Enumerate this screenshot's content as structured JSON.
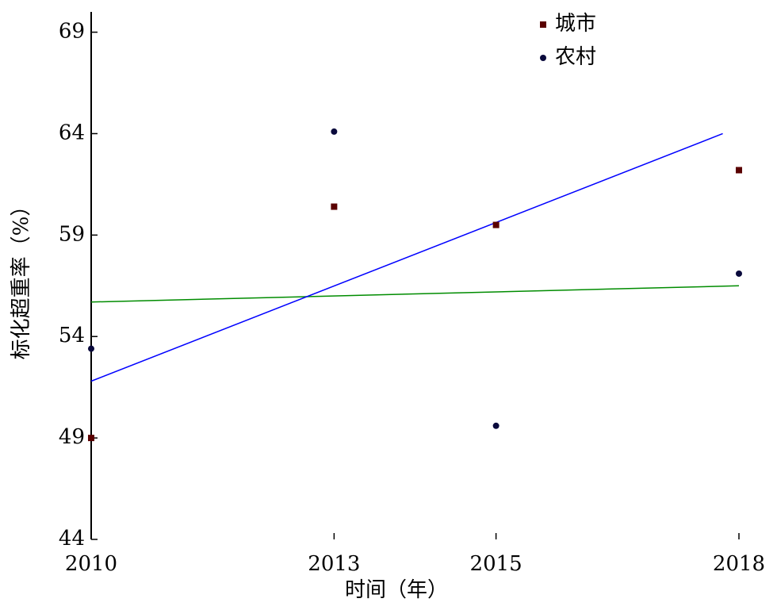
{
  "chart_data": {
    "type": "scatter",
    "xlabel": "时间（年）",
    "ylabel": "标化超重率（%）",
    "xlim": [
      2010,
      2018
    ],
    "ylim": [
      44,
      70
    ],
    "xticks": [
      2010,
      2013,
      2015,
      2018
    ],
    "yticks": [
      44,
      49,
      54,
      59,
      64,
      69
    ],
    "legend": "top-right",
    "series": [
      {
        "name": "城市",
        "color": "#5a0000",
        "marker": "square",
        "x": [
          2010,
          2013,
          2015,
          2018
        ],
        "values": [
          49.0,
          60.4,
          59.5,
          62.2
        ]
      },
      {
        "name": "农村",
        "color": "#0a0a3c",
        "marker": "circle",
        "x": [
          2010,
          2013,
          2015,
          2018
        ],
        "values": [
          53.4,
          64.1,
          49.6,
          57.1
        ]
      }
    ],
    "trend_lines": [
      {
        "type": "line",
        "color": "#008c00",
        "x": [
          2010,
          2018
        ],
        "values": [
          55.7,
          56.5
        ]
      },
      {
        "type": "line",
        "color": "#0000ff",
        "x": [
          2010,
          2017.8
        ],
        "values": [
          51.8,
          64.0
        ]
      }
    ]
  }
}
